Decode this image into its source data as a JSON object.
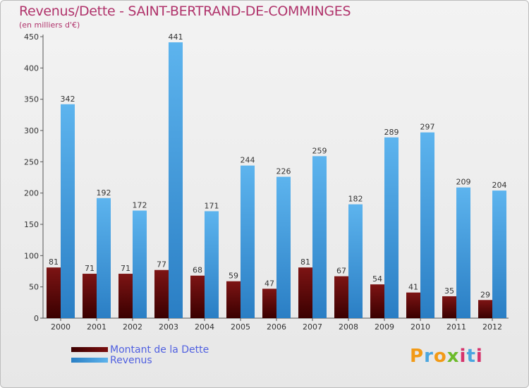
{
  "title": "Revenus/Dette - SAINT-BERTRAND-DE-COMMINGES",
  "subtitle": "(en milliers d'€)",
  "logo_text": "Proxiti",
  "colors": {
    "title": "#b0336b",
    "dette": "#6b0a0a",
    "revenus": "#4aa6e6",
    "legend_text": "#4f5fe0"
  },
  "chart_data": {
    "type": "bar",
    "categories": [
      "2000",
      "2001",
      "2002",
      "2003",
      "2004",
      "2005",
      "2006",
      "2007",
      "2008",
      "2009",
      "2010",
      "2011",
      "2012"
    ],
    "series": [
      {
        "name": "Montant de la Dette",
        "values": [
          81,
          71,
          71,
          77,
          68,
          59,
          47,
          81,
          67,
          54,
          41,
          35,
          29
        ]
      },
      {
        "name": "Revenus",
        "values": [
          342,
          192,
          172,
          441,
          171,
          244,
          226,
          259,
          182,
          289,
          297,
          209,
          204
        ]
      }
    ],
    "ylim": [
      0,
      450
    ],
    "yticks": [
      0,
      50,
      100,
      150,
      200,
      250,
      300,
      350,
      400,
      450
    ],
    "grid": false,
    "legend": "bottom-left"
  }
}
